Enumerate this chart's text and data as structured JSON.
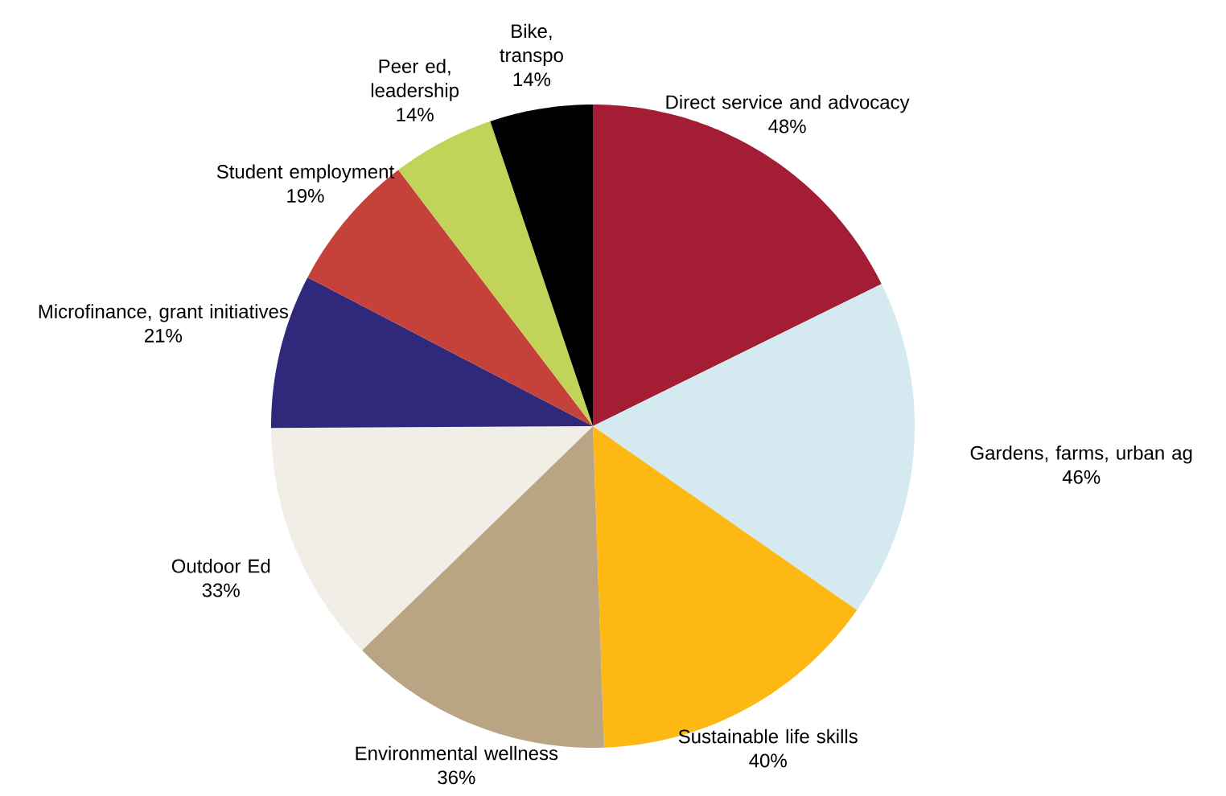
{
  "chart_data": {
    "type": "pie",
    "categories": [
      "Direct service and advocacy",
      "Gardens, farms, urban ag",
      "Sustainable life skills",
      "Environmental wellness",
      "Outdoor Ed",
      "Microfinance, grant initiatives",
      "Student employment",
      "Peer ed, leadership",
      "Bike, transpo"
    ],
    "values": [
      48,
      46,
      40,
      36,
      33,
      21,
      19,
      14,
      14
    ],
    "value_labels": [
      "48%",
      "46%",
      "40%",
      "36%",
      "33%",
      "21%",
      "19%",
      "14%",
      "14%"
    ],
    "colors": [
      "#a31d35",
      "#d5eaf0",
      "#fdb813",
      "#b9a583",
      "#f1ede7",
      "#30287a",
      "#c5423a",
      "#c2d35a",
      "#000000"
    ]
  }
}
